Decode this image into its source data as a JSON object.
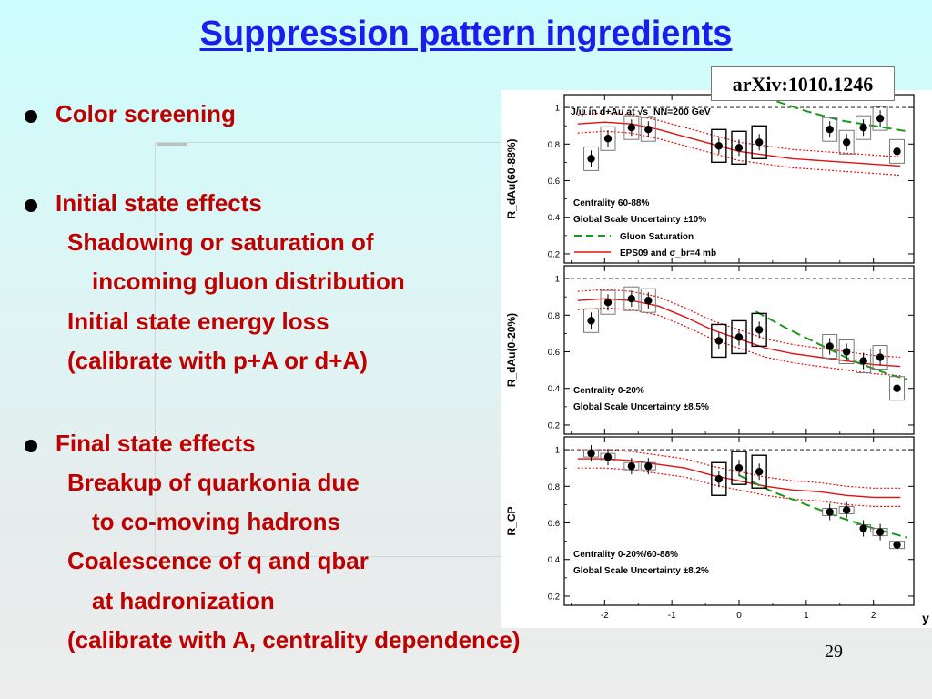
{
  "slide": {
    "title": "Suppression pattern ingredients",
    "page_number": "29",
    "citation": "arXiv:1010.1246",
    "text_color": "#bf0000",
    "title_color": "#1c1cf0",
    "bullets": [
      {
        "text": "Color screening",
        "bullet": true,
        "level": 0
      },
      {
        "text": "Initial state effects",
        "bullet": true,
        "level": 0
      },
      {
        "text": "Shadowing or saturation of",
        "bullet": false,
        "level": 1
      },
      {
        "text": "incoming gluon distribution",
        "bullet": false,
        "level": 2
      },
      {
        "text": "Initial state energy loss",
        "bullet": false,
        "level": 1
      },
      {
        "text": "(calibrate with p+A or d+A)",
        "bullet": false,
        "level": 1
      },
      {
        "text": "Final state effects",
        "bullet": true,
        "level": 0
      },
      {
        "text": "Breakup of quarkonia due",
        "bullet": false,
        "level": 1
      },
      {
        "text": "to co-moving hadrons",
        "bullet": false,
        "level": 2
      },
      {
        "text": "Coalescence of q and qbar",
        "bullet": false,
        "level": 1
      },
      {
        "text": "at hadronization",
        "bullet": false,
        "level": 2
      },
      {
        "text": "(calibrate with A, centrality dependence)",
        "bullet": false,
        "level": 1
      }
    ]
  },
  "chart_data": [
    {
      "type": "scatter",
      "title": "J/ψ in d+Au at √s_NN=200 GeV",
      "ylabel": "R_dAu(60-88%)",
      "xlabel": "",
      "xlim": [
        -2.6,
        2.6
      ],
      "ylim": [
        0.15,
        1.07
      ],
      "yticks": [
        "0.2",
        "0.4",
        "0.6",
        "0.8",
        "1"
      ],
      "annotations": [
        "Centrality 60-88%",
        "Global Scale Uncertainty ±10%"
      ],
      "legend": [
        {
          "label": "Gluon Saturation",
          "style": "dashed",
          "color": "#1a9a1a"
        },
        {
          "label": "EPS09 and σ_br=4 mb",
          "style": "solid",
          "color": "#e01010"
        }
      ],
      "series": [
        {
          "name": "data",
          "x": [
            -2.2,
            -1.95,
            -1.6,
            -1.35,
            -0.3,
            0.0,
            0.3,
            1.35,
            1.6,
            1.85,
            2.1,
            2.35
          ],
          "y": [
            0.72,
            0.83,
            0.89,
            0.88,
            0.79,
            0.78,
            0.81,
            0.88,
            0.81,
            0.89,
            0.94,
            0.76
          ]
        },
        {
          "name": "Gluon Saturation",
          "x": [
            0.0,
            0.5,
            1.0,
            1.5,
            2.0,
            2.5
          ],
          "y": [
            1.12,
            1.04,
            0.98,
            0.93,
            0.9,
            0.87
          ]
        },
        {
          "name": "EPS09 and σ_br=4 mb",
          "x": [
            -2.4,
            -2.0,
            -1.6,
            -1.2,
            -0.8,
            -0.4,
            0.0,
            0.4,
            0.8,
            1.2,
            1.6,
            2.0,
            2.4
          ],
          "y": [
            0.91,
            0.92,
            0.91,
            0.88,
            0.84,
            0.8,
            0.76,
            0.74,
            0.72,
            0.71,
            0.7,
            0.69,
            0.68
          ]
        }
      ]
    },
    {
      "type": "scatter",
      "ylabel": "R_dAu(0-20%)",
      "xlabel": "",
      "xlim": [
        -2.6,
        2.6
      ],
      "ylim": [
        0.15,
        1.07
      ],
      "yticks": [
        "0.2",
        "0.4",
        "0.6",
        "0.8",
        "1"
      ],
      "annotations": [
        "Centrality 0-20%",
        "Global Scale Uncertainty ±8.5%"
      ],
      "series": [
        {
          "name": "data",
          "x": [
            -2.2,
            -1.95,
            -1.6,
            -1.35,
            -0.3,
            0.0,
            0.3,
            1.35,
            1.6,
            1.85,
            2.1,
            2.35
          ],
          "y": [
            0.77,
            0.87,
            0.89,
            0.88,
            0.66,
            0.68,
            0.72,
            0.63,
            0.6,
            0.55,
            0.57,
            0.4
          ]
        },
        {
          "name": "Gluon Saturation",
          "x": [
            0.25,
            0.7,
            1.2,
            1.7,
            2.2,
            2.5
          ],
          "y": [
            0.82,
            0.73,
            0.64,
            0.55,
            0.48,
            0.45
          ]
        },
        {
          "name": "EPS09 and σ_br=4 mb",
          "x": [
            -2.4,
            -2.0,
            -1.6,
            -1.2,
            -0.8,
            -0.4,
            0.0,
            0.4,
            0.8,
            1.2,
            1.6,
            2.0,
            2.4
          ],
          "y": [
            0.88,
            0.89,
            0.88,
            0.85,
            0.79,
            0.72,
            0.67,
            0.62,
            0.59,
            0.57,
            0.55,
            0.53,
            0.52
          ]
        }
      ]
    },
    {
      "type": "scatter",
      "ylabel": "R_CP",
      "xlabel": "y",
      "xlim": [
        -2.6,
        2.6
      ],
      "ylim": [
        0.15,
        1.07
      ],
      "xticks": [
        "-2",
        "-1",
        "0",
        "1",
        "2"
      ],
      "yticks": [
        "0.2",
        "0.4",
        "0.6",
        "0.8",
        "1"
      ],
      "annotations": [
        "Centrality 0-20%/60-88%",
        "Global Scale Uncertainty ±8.2%"
      ],
      "series": [
        {
          "name": "data",
          "x": [
            -2.2,
            -1.95,
            -1.6,
            -1.35,
            -0.3,
            0.0,
            0.3,
            1.35,
            1.6,
            1.85,
            2.1,
            2.35
          ],
          "y": [
            0.98,
            0.96,
            0.91,
            0.91,
            0.84,
            0.9,
            0.88,
            0.66,
            0.67,
            0.57,
            0.55,
            0.48
          ]
        },
        {
          "name": "Gluon Saturation",
          "x": [
            0.0,
            0.5,
            1.0,
            1.5,
            2.0,
            2.5
          ],
          "y": [
            0.86,
            0.77,
            0.7,
            0.63,
            0.57,
            0.52
          ]
        },
        {
          "name": "EPS09 and σ_br=4 mb",
          "x": [
            -2.4,
            -2.0,
            -1.6,
            -1.2,
            -0.8,
            -0.4,
            0.0,
            0.4,
            0.8,
            1.2,
            1.6,
            2.0,
            2.4
          ],
          "y": [
            0.95,
            0.95,
            0.94,
            0.92,
            0.9,
            0.86,
            0.83,
            0.8,
            0.78,
            0.77,
            0.75,
            0.74,
            0.74
          ]
        }
      ]
    }
  ]
}
